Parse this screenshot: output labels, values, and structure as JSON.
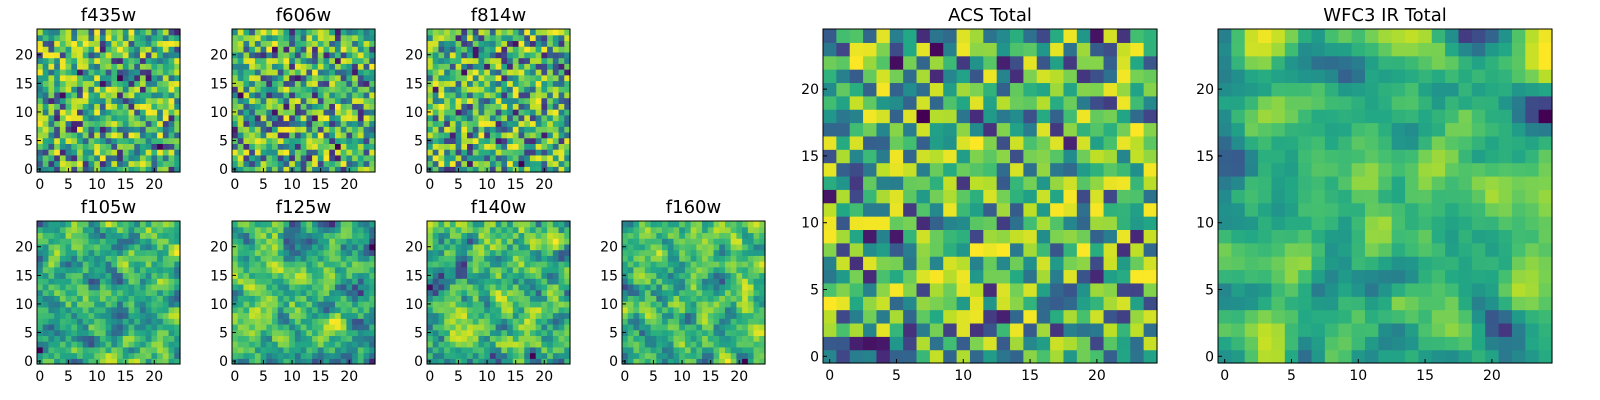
{
  "figure": {
    "background": "#ffffff"
  },
  "chart_data": [
    {
      "id": "f435w",
      "type": "heatmap",
      "title": "f435w",
      "grid_size": 25,
      "colormap": "viridis",
      "xticks": [
        0,
        5,
        10,
        15,
        20
      ],
      "yticks": [
        0,
        5,
        10,
        15,
        20
      ],
      "ylim": [
        -0.5,
        24.5
      ],
      "xlim": [
        -0.5,
        24.5
      ],
      "seed": 11,
      "smooth": 0
    },
    {
      "id": "f606w",
      "type": "heatmap",
      "title": "f606w",
      "grid_size": 25,
      "colormap": "viridis",
      "xticks": [
        0,
        5,
        10,
        15,
        20
      ],
      "yticks": [
        0,
        5,
        10,
        15,
        20
      ],
      "ylim": [
        -0.5,
        24.5
      ],
      "xlim": [
        -0.5,
        24.5
      ],
      "seed": 23,
      "smooth": 0
    },
    {
      "id": "f814w",
      "type": "heatmap",
      "title": "f814w",
      "grid_size": 25,
      "colormap": "viridis",
      "xticks": [
        0,
        5,
        10,
        15,
        20
      ],
      "yticks": [
        0,
        5,
        10,
        15,
        20
      ],
      "ylim": [
        -0.5,
        24.5
      ],
      "xlim": [
        -0.5,
        24.5
      ],
      "seed": 37,
      "smooth": 0
    },
    {
      "id": "f105w",
      "type": "heatmap",
      "title": "f105w",
      "grid_size": 25,
      "colormap": "viridis",
      "xticks": [
        0,
        5,
        10,
        15,
        20
      ],
      "yticks": [
        0,
        5,
        10,
        15,
        20
      ],
      "ylim": [
        -0.5,
        24.5
      ],
      "xlim": [
        -0.5,
        24.5
      ],
      "seed": 41,
      "smooth": 1
    },
    {
      "id": "f125w",
      "type": "heatmap",
      "title": "f125w",
      "grid_size": 25,
      "colormap": "viridis",
      "xticks": [
        0,
        5,
        10,
        15,
        20
      ],
      "yticks": [
        0,
        5,
        10,
        15,
        20
      ],
      "ylim": [
        -0.5,
        24.5
      ],
      "xlim": [
        -0.5,
        24.5
      ],
      "seed": 53,
      "smooth": 1
    },
    {
      "id": "f140w",
      "type": "heatmap",
      "title": "f140w",
      "grid_size": 25,
      "colormap": "viridis",
      "xticks": [
        0,
        5,
        10,
        15,
        20
      ],
      "yticks": [
        0,
        5,
        10,
        15,
        20
      ],
      "ylim": [
        -0.5,
        24.5
      ],
      "xlim": [
        -0.5,
        24.5
      ],
      "seed": 67,
      "smooth": 1
    },
    {
      "id": "f160w",
      "type": "heatmap",
      "title": "f160w",
      "grid_size": 25,
      "colormap": "viridis",
      "xticks": [
        0,
        5,
        10,
        15,
        20
      ],
      "yticks": [
        0,
        5,
        10,
        15,
        20
      ],
      "ylim": [
        -0.5,
        24.5
      ],
      "xlim": [
        -0.5,
        24.5
      ],
      "seed": 79,
      "smooth": 1
    },
    {
      "id": "acs_total",
      "type": "heatmap",
      "title": "ACS Total",
      "grid_size": 25,
      "colormap": "viridis",
      "xticks": [
        0,
        5,
        10,
        15,
        20
      ],
      "yticks": [
        0,
        5,
        10,
        15,
        20
      ],
      "ylim": [
        -0.5,
        24.5
      ],
      "xlim": [
        -0.5,
        24.5
      ],
      "seed": 97,
      "smooth": 0
    },
    {
      "id": "wfc3_ir_total",
      "type": "heatmap",
      "title": "WFC3 IR Total",
      "grid_size": 25,
      "colormap": "viridis",
      "xticks": [
        0,
        5,
        10,
        15,
        20
      ],
      "yticks": [
        0,
        5,
        10,
        15,
        20
      ],
      "ylim": [
        -0.5,
        24.5
      ],
      "xlim": [
        -0.5,
        24.5
      ],
      "seed": 113,
      "smooth": 2
    }
  ]
}
